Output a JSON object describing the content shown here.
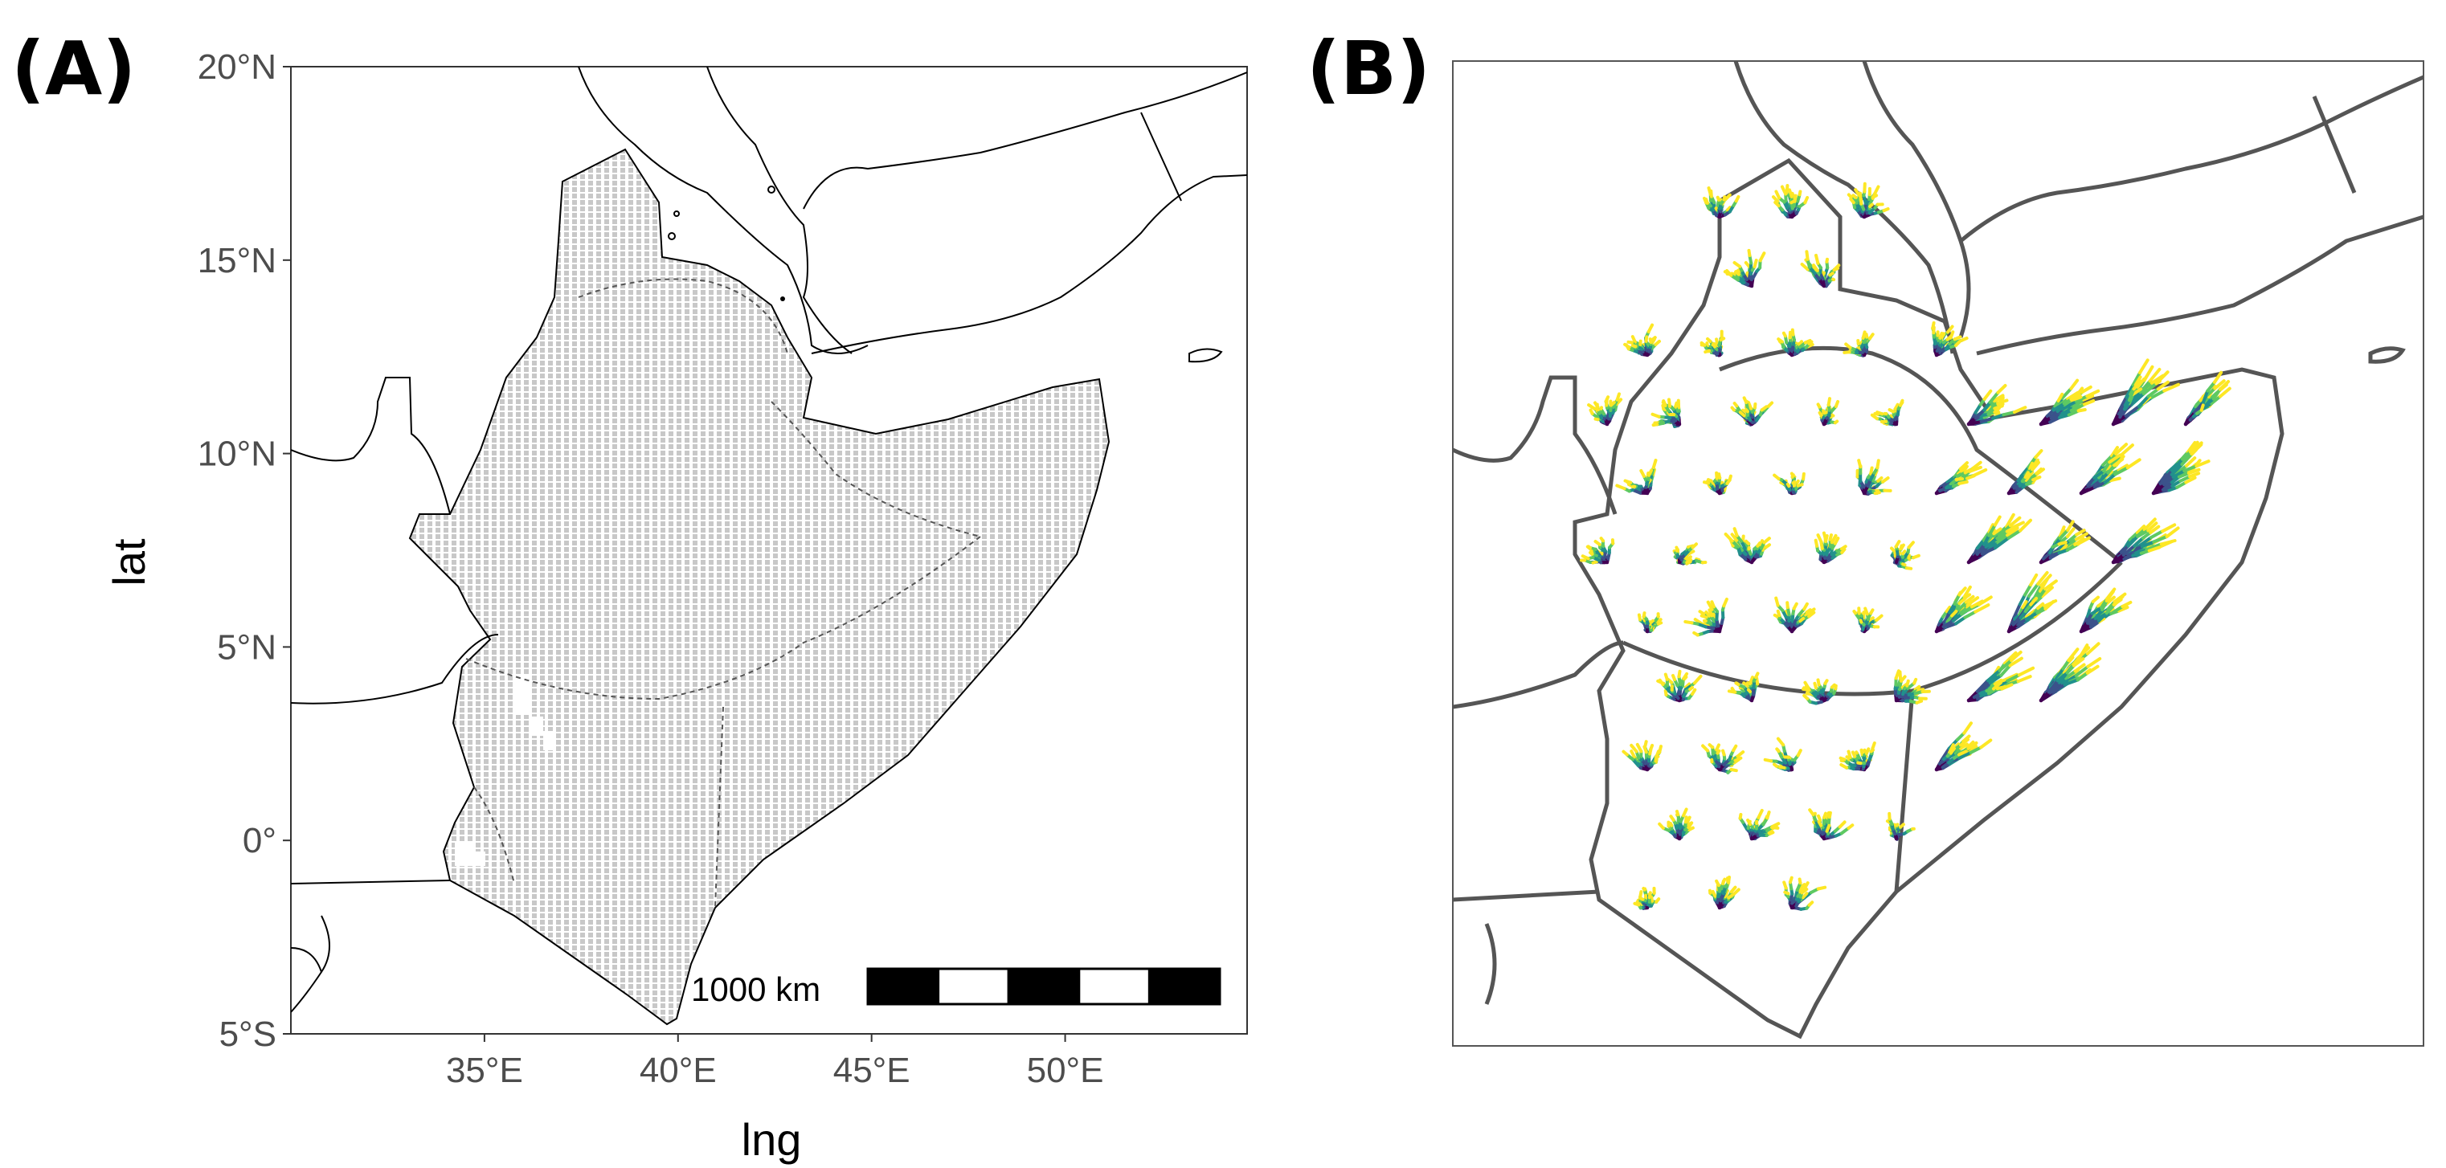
{
  "panels": {
    "a_label": "(A)",
    "b_label": "(B)"
  },
  "panel_a": {
    "y_axis_title": "lat",
    "x_axis_title": "lng",
    "lat_ticks": [
      {
        "value": 20,
        "label": "20°N"
      },
      {
        "value": 15,
        "label": "15°N"
      },
      {
        "value": 10,
        "label": "10°N"
      },
      {
        "value": 5,
        "label": "5°N"
      },
      {
        "value": 0,
        "label": "0°"
      },
      {
        "value": -5,
        "label": "5°S"
      }
    ],
    "lng_ticks": [
      {
        "value": 35,
        "label": "35°E"
      },
      {
        "value": 40,
        "label": "40°E"
      },
      {
        "value": 45,
        "label": "45°E"
      },
      {
        "value": 50,
        "label": "50°E"
      }
    ],
    "scale_bar": {
      "label": "1000 km",
      "segments": 5
    },
    "colors": {
      "grid_fill": "#bdbdbd",
      "border": "#000000",
      "background": "#ffffff"
    }
  },
  "panel_b": {
    "colors": {
      "border": "#555555",
      "palette": [
        "#440154",
        "#3b528b",
        "#21918c",
        "#5ec962",
        "#fde725"
      ]
    }
  }
}
